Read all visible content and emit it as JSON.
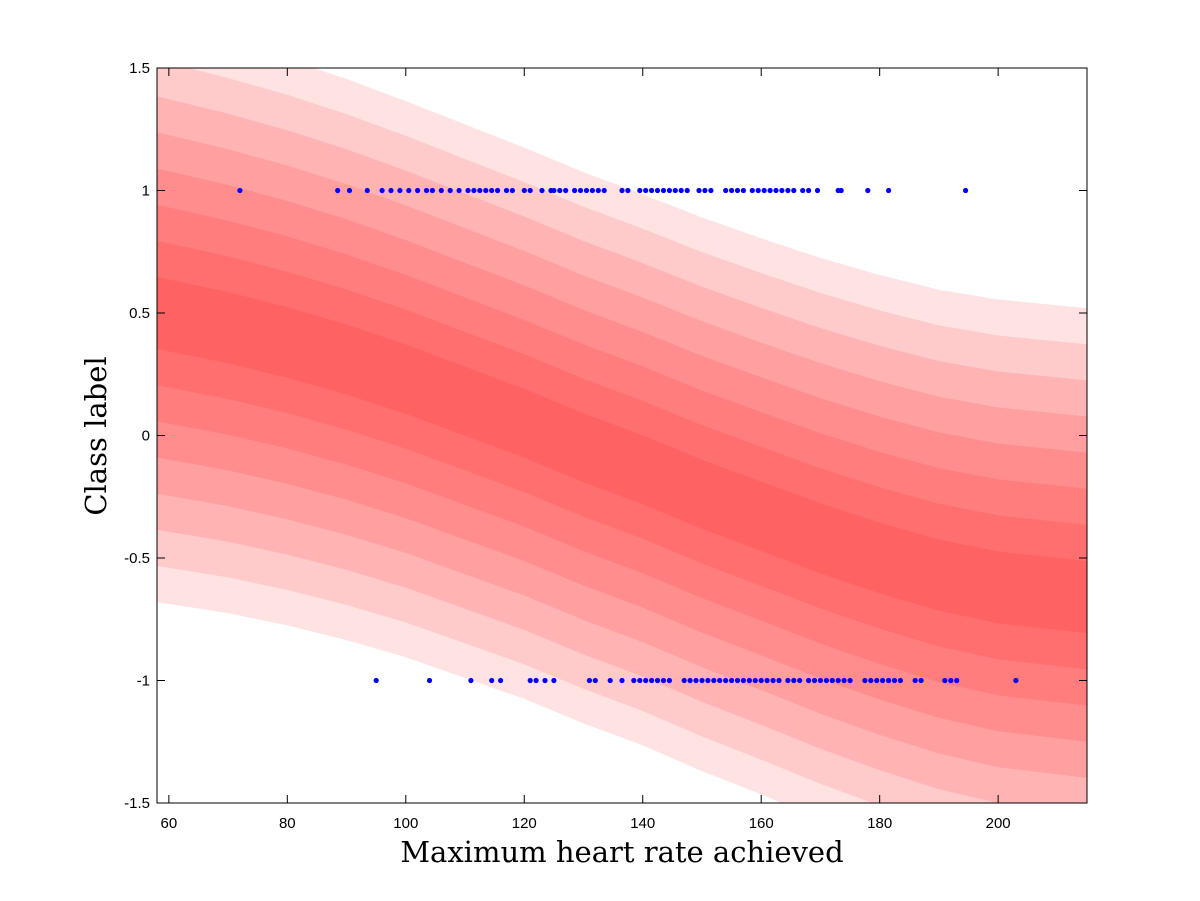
{
  "chart_data": {
    "type": "scatter",
    "title": "",
    "xlabel": "Maximum heart rate achieved",
    "ylabel": "Class label",
    "xlim": [
      58,
      215
    ],
    "ylim": [
      -1.5,
      1.5
    ],
    "x_ticks": [
      60,
      80,
      100,
      120,
      140,
      160,
      180,
      200
    ],
    "y_ticks": [
      -1.5,
      -1,
      -0.5,
      0,
      0.5,
      1,
      1.5
    ],
    "x_tick_labels": [
      "60",
      "80",
      "100",
      "120",
      "140",
      "160",
      "180",
      "200"
    ],
    "y_tick_labels": [
      "-1.5",
      "-1",
      "-0.5",
      "0",
      "0.5",
      "1",
      "1.5"
    ],
    "grid": false,
    "colors": {
      "points": "#0000ff",
      "band": "#ff0000",
      "axes": "#000000"
    },
    "predictive_band": {
      "description_levels": 8,
      "x": [
        58,
        70,
        80,
        90,
        100,
        110,
        120,
        130,
        140,
        150,
        160,
        170,
        180,
        190,
        200,
        215
      ],
      "mean": [
        0.5,
        0.44,
        0.38,
        0.31,
        0.23,
        0.14,
        0.05,
        -0.05,
        -0.14,
        -0.24,
        -0.33,
        -0.42,
        -0.5,
        -0.57,
        -0.62,
        -0.66
      ],
      "outer_half_width": [
        1.18,
        1.165,
        1.155,
        1.145,
        1.135,
        1.13,
        1.125,
        1.125,
        1.125,
        1.13,
        1.135,
        1.145,
        1.155,
        1.165,
        1.175,
        1.18
      ]
    },
    "series": [
      {
        "y": 1,
        "x": [
          72,
          88.5,
          90.5,
          93.5,
          96,
          97.5,
          99,
          100.5,
          102,
          103.5,
          104.5,
          106,
          107.5,
          109,
          110.5,
          111.5,
          112.5,
          113.5,
          114.5,
          115.5,
          117,
          118,
          120,
          121,
          123,
          124.5,
          125,
          126,
          127,
          128.5,
          129.5,
          130.5,
          131.5,
          132.5,
          133.5,
          136.5,
          137.5,
          139.5,
          140.5,
          141.5,
          142.5,
          143.5,
          144.5,
          145.5,
          146.5,
          147.5,
          149.5,
          150.5,
          151.5,
          154,
          155,
          156,
          157,
          158.5,
          159.5,
          160.5,
          161.5,
          162.5,
          163.5,
          164.5,
          165.5,
          167,
          168,
          169.5,
          173,
          173.5,
          178,
          181.5,
          194.5
        ]
      },
      {
        "y": -1,
        "x": [
          95,
          104,
          111,
          114.5,
          116,
          121,
          122,
          123.5,
          125,
          131,
          132,
          134.5,
          136.5,
          138.5,
          139.5,
          140.5,
          141.5,
          142.5,
          143.5,
          144.5,
          147,
          148,
          149,
          150,
          151,
          152,
          153,
          154,
          155,
          156,
          157,
          158,
          159,
          160,
          161,
          162,
          163,
          164.5,
          165.5,
          166.5,
          168,
          169,
          170,
          171,
          172,
          173,
          174,
          175,
          177.5,
          178.5,
          179.5,
          180.5,
          181.5,
          182.5,
          183.5,
          186,
          187,
          191,
          192,
          193,
          203
        ]
      }
    ]
  }
}
